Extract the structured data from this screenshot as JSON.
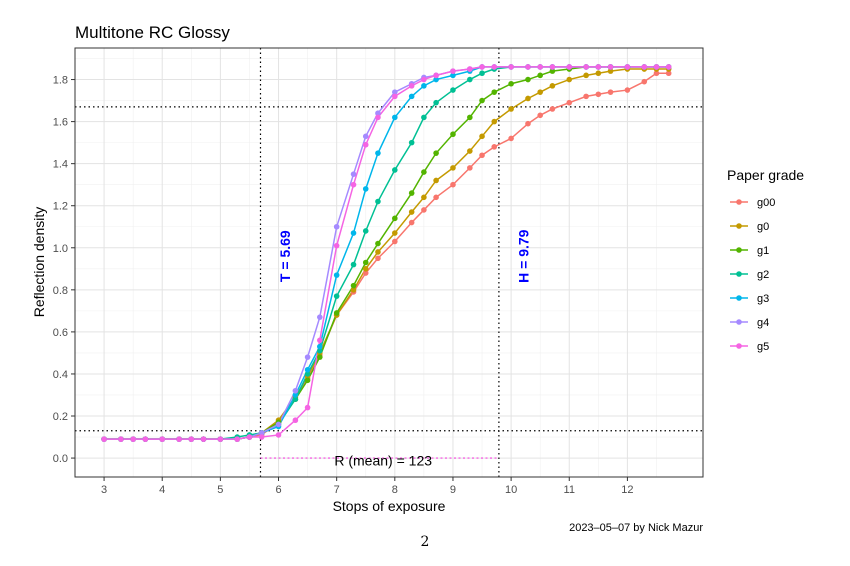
{
  "chart_data": {
    "type": "line",
    "title": "Multitone RC Glossy",
    "xlabel": "Stops of exposure",
    "ylabel": "Reflection density",
    "xlim": [
      2.5,
      13.3
    ],
    "ylim": [
      -0.09,
      1.95
    ],
    "x_ticks": [
      3,
      4,
      5,
      6,
      7,
      8,
      9,
      10,
      11,
      12
    ],
    "x_tick_labels": [
      "3",
      "4",
      "5",
      "6",
      "7",
      "8",
      "9",
      "10",
      "11",
      "12"
    ],
    "y_ticks": [
      0.0,
      0.2,
      0.4,
      0.6,
      0.8,
      1.0,
      1.2,
      1.4,
      1.6,
      1.8
    ],
    "y_tick_labels": [
      "0.0",
      "0.2",
      "0.4",
      "0.6",
      "0.8",
      "1.0",
      "1.2",
      "1.4",
      "1.6",
      "1.8"
    ],
    "grid": true,
    "legend": {
      "title": "Paper grade",
      "position": "right"
    },
    "reference_lines": {
      "vertical": [
        5.69,
        9.79
      ],
      "horizontal": [
        0.13,
        1.67
      ],
      "range_segment": {
        "x0": 5.69,
        "x1": 9.79,
        "y": 0.0,
        "color": "#F564E3"
      }
    },
    "annotations": [
      {
        "text": "T = 5.69",
        "x": 6.2,
        "y": 0.96,
        "rotate": -90,
        "color": "#0000FF"
      },
      {
        "text": "H = 9.79",
        "x": 10.3,
        "y": 0.96,
        "rotate": -90,
        "color": "#0000FF"
      },
      {
        "text": "R (mean) = 123",
        "x": 7.8,
        "y": -0.035,
        "color": "#000000"
      }
    ],
    "series": [
      {
        "name": "g00",
        "color": "#F8766D",
        "x": [
          3,
          3.29,
          3.5,
          3.71,
          4,
          4.29,
          4.5,
          4.71,
          5,
          5.29,
          5.5,
          5.71,
          6,
          6.29,
          6.5,
          6.71,
          7,
          7.29,
          7.5,
          7.71,
          8,
          8.29,
          8.5,
          8.71,
          9,
          9.29,
          9.5,
          9.71,
          10,
          10.29,
          10.5,
          10.71,
          11,
          11.29,
          11.5,
          11.71,
          12,
          12.29,
          12.5,
          12.71
        ],
        "y": [
          0.09,
          0.09,
          0.09,
          0.09,
          0.09,
          0.09,
          0.09,
          0.09,
          0.09,
          0.09,
          0.1,
          0.11,
          0.17,
          0.28,
          0.38,
          0.49,
          0.68,
          0.79,
          0.88,
          0.95,
          1.03,
          1.12,
          1.18,
          1.24,
          1.3,
          1.38,
          1.44,
          1.48,
          1.52,
          1.59,
          1.63,
          1.66,
          1.69,
          1.72,
          1.73,
          1.74,
          1.75,
          1.79,
          1.83,
          1.83
        ]
      },
      {
        "name": "g0",
        "color": "#C49A00",
        "x": [
          3,
          3.29,
          3.5,
          3.71,
          4,
          4.29,
          4.5,
          4.71,
          5,
          5.29,
          5.5,
          5.71,
          6,
          6.29,
          6.5,
          6.71,
          7,
          7.29,
          7.5,
          7.71,
          8,
          8.29,
          8.5,
          8.71,
          9,
          9.29,
          9.5,
          9.71,
          10,
          10.29,
          10.5,
          10.71,
          11,
          11.29,
          11.5,
          11.71,
          12,
          12.29,
          12.5,
          12.71
        ],
        "y": [
          0.09,
          0.09,
          0.09,
          0.09,
          0.09,
          0.09,
          0.09,
          0.09,
          0.09,
          0.09,
          0.1,
          0.12,
          0.18,
          0.29,
          0.39,
          0.5,
          0.68,
          0.8,
          0.9,
          0.98,
          1.07,
          1.17,
          1.24,
          1.32,
          1.38,
          1.46,
          1.53,
          1.6,
          1.66,
          1.71,
          1.74,
          1.77,
          1.8,
          1.82,
          1.83,
          1.84,
          1.85,
          1.85,
          1.85,
          1.85
        ]
      },
      {
        "name": "g1",
        "color": "#53B400",
        "x": [
          3,
          3.29,
          3.5,
          3.71,
          4,
          4.29,
          4.5,
          4.71,
          5,
          5.29,
          5.5,
          5.71,
          6,
          6.29,
          6.5,
          6.71,
          7,
          7.29,
          7.5,
          7.71,
          8,
          8.29,
          8.5,
          8.71,
          9,
          9.29,
          9.5,
          9.71,
          10,
          10.29,
          10.5,
          10.71,
          11,
          11.29,
          11.5,
          11.71,
          12,
          12.29,
          12.5,
          12.71
        ],
        "y": [
          0.09,
          0.09,
          0.09,
          0.09,
          0.09,
          0.09,
          0.09,
          0.09,
          0.09,
          0.09,
          0.1,
          0.12,
          0.17,
          0.28,
          0.37,
          0.48,
          0.69,
          0.82,
          0.93,
          1.02,
          1.14,
          1.26,
          1.36,
          1.45,
          1.54,
          1.62,
          1.7,
          1.74,
          1.78,
          1.8,
          1.82,
          1.84,
          1.85,
          1.86,
          1.86,
          1.86,
          1.86,
          1.86,
          1.86,
          1.86
        ]
      },
      {
        "name": "g2",
        "color": "#00C094",
        "x": [
          3,
          3.29,
          3.5,
          3.71,
          4,
          4.29,
          4.5,
          4.71,
          5,
          5.29,
          5.5,
          5.71,
          6,
          6.29,
          6.5,
          6.71,
          7,
          7.29,
          7.5,
          7.71,
          8,
          8.29,
          8.5,
          8.71,
          9,
          9.29,
          9.5,
          9.71,
          10,
          10.29,
          10.5,
          10.71,
          11,
          11.29,
          11.5,
          11.71,
          12,
          12.29,
          12.5,
          12.71
        ],
        "y": [
          0.09,
          0.09,
          0.09,
          0.09,
          0.09,
          0.09,
          0.09,
          0.09,
          0.09,
          0.1,
          0.11,
          0.12,
          0.16,
          0.28,
          0.4,
          0.51,
          0.77,
          0.92,
          1.08,
          1.22,
          1.37,
          1.5,
          1.62,
          1.69,
          1.75,
          1.8,
          1.83,
          1.85,
          1.86,
          1.86,
          1.86,
          1.86,
          1.86,
          1.86,
          1.86,
          1.86,
          1.86,
          1.86,
          1.86,
          1.86
        ]
      },
      {
        "name": "g3",
        "color": "#00B6EB",
        "x": [
          3,
          3.29,
          3.5,
          3.71,
          4,
          4.29,
          4.5,
          4.71,
          5,
          5.29,
          5.5,
          5.71,
          6,
          6.29,
          6.5,
          6.71,
          7,
          7.29,
          7.5,
          7.71,
          8,
          8.29,
          8.5,
          8.71,
          9,
          9.29,
          9.5,
          9.71,
          10,
          10.29,
          10.5,
          10.71,
          11,
          11.29,
          11.5,
          11.71,
          12,
          12.29,
          12.5,
          12.71
        ],
        "y": [
          0.09,
          0.09,
          0.09,
          0.09,
          0.09,
          0.09,
          0.09,
          0.09,
          0.09,
          0.09,
          0.1,
          0.12,
          0.15,
          0.3,
          0.42,
          0.53,
          0.87,
          1.07,
          1.28,
          1.45,
          1.62,
          1.72,
          1.77,
          1.8,
          1.82,
          1.84,
          1.86,
          1.86,
          1.86,
          1.86,
          1.86,
          1.86,
          1.86,
          1.86,
          1.86,
          1.86,
          1.86,
          1.86,
          1.86,
          1.86
        ]
      },
      {
        "name": "g4",
        "color": "#A58AFF",
        "x": [
          3,
          3.29,
          3.5,
          3.71,
          4,
          4.29,
          4.5,
          4.71,
          5,
          5.29,
          5.5,
          5.71,
          6,
          6.29,
          6.5,
          6.71,
          7,
          7.29,
          7.5,
          7.71,
          8,
          8.29,
          8.5,
          8.71,
          9,
          9.29,
          9.5,
          9.71,
          10,
          10.29,
          10.5,
          10.71,
          11,
          11.29,
          11.5,
          11.71,
          12,
          12.29,
          12.5,
          12.71
        ],
        "y": [
          0.09,
          0.09,
          0.09,
          0.09,
          0.09,
          0.09,
          0.09,
          0.09,
          0.09,
          0.09,
          0.1,
          0.12,
          0.16,
          0.32,
          0.48,
          0.67,
          1.1,
          1.35,
          1.53,
          1.64,
          1.74,
          1.78,
          1.81,
          1.82,
          1.84,
          1.85,
          1.86,
          1.86,
          1.86,
          1.86,
          1.86,
          1.86,
          1.86,
          1.86,
          1.86,
          1.86,
          1.86,
          1.86,
          1.86,
          1.86
        ]
      },
      {
        "name": "g5",
        "color": "#F564E3",
        "x": [
          3,
          3.29,
          3.5,
          3.71,
          4,
          4.29,
          4.5,
          4.71,
          5,
          5.29,
          5.5,
          5.71,
          6,
          6.29,
          6.5,
          6.71,
          7,
          7.29,
          7.5,
          7.71,
          8,
          8.29,
          8.5,
          8.71,
          9,
          9.29,
          9.5,
          9.71,
          10,
          10.29,
          10.5,
          10.71,
          11,
          11.29,
          11.5,
          11.71,
          12,
          12.29,
          12.5,
          12.71
        ],
        "y": [
          0.09,
          0.09,
          0.09,
          0.09,
          0.09,
          0.09,
          0.09,
          0.09,
          0.09,
          0.09,
          0.1,
          0.1,
          0.11,
          0.18,
          0.24,
          0.56,
          1.01,
          1.3,
          1.49,
          1.62,
          1.72,
          1.77,
          1.8,
          1.82,
          1.84,
          1.85,
          1.86,
          1.86,
          1.86,
          1.86,
          1.86,
          1.86,
          1.86,
          1.86,
          1.86,
          1.86,
          1.86,
          1.86,
          1.86,
          1.86
        ]
      }
    ]
  },
  "caption": "2023–05–07 by Nick Mazur",
  "page_number": "2"
}
